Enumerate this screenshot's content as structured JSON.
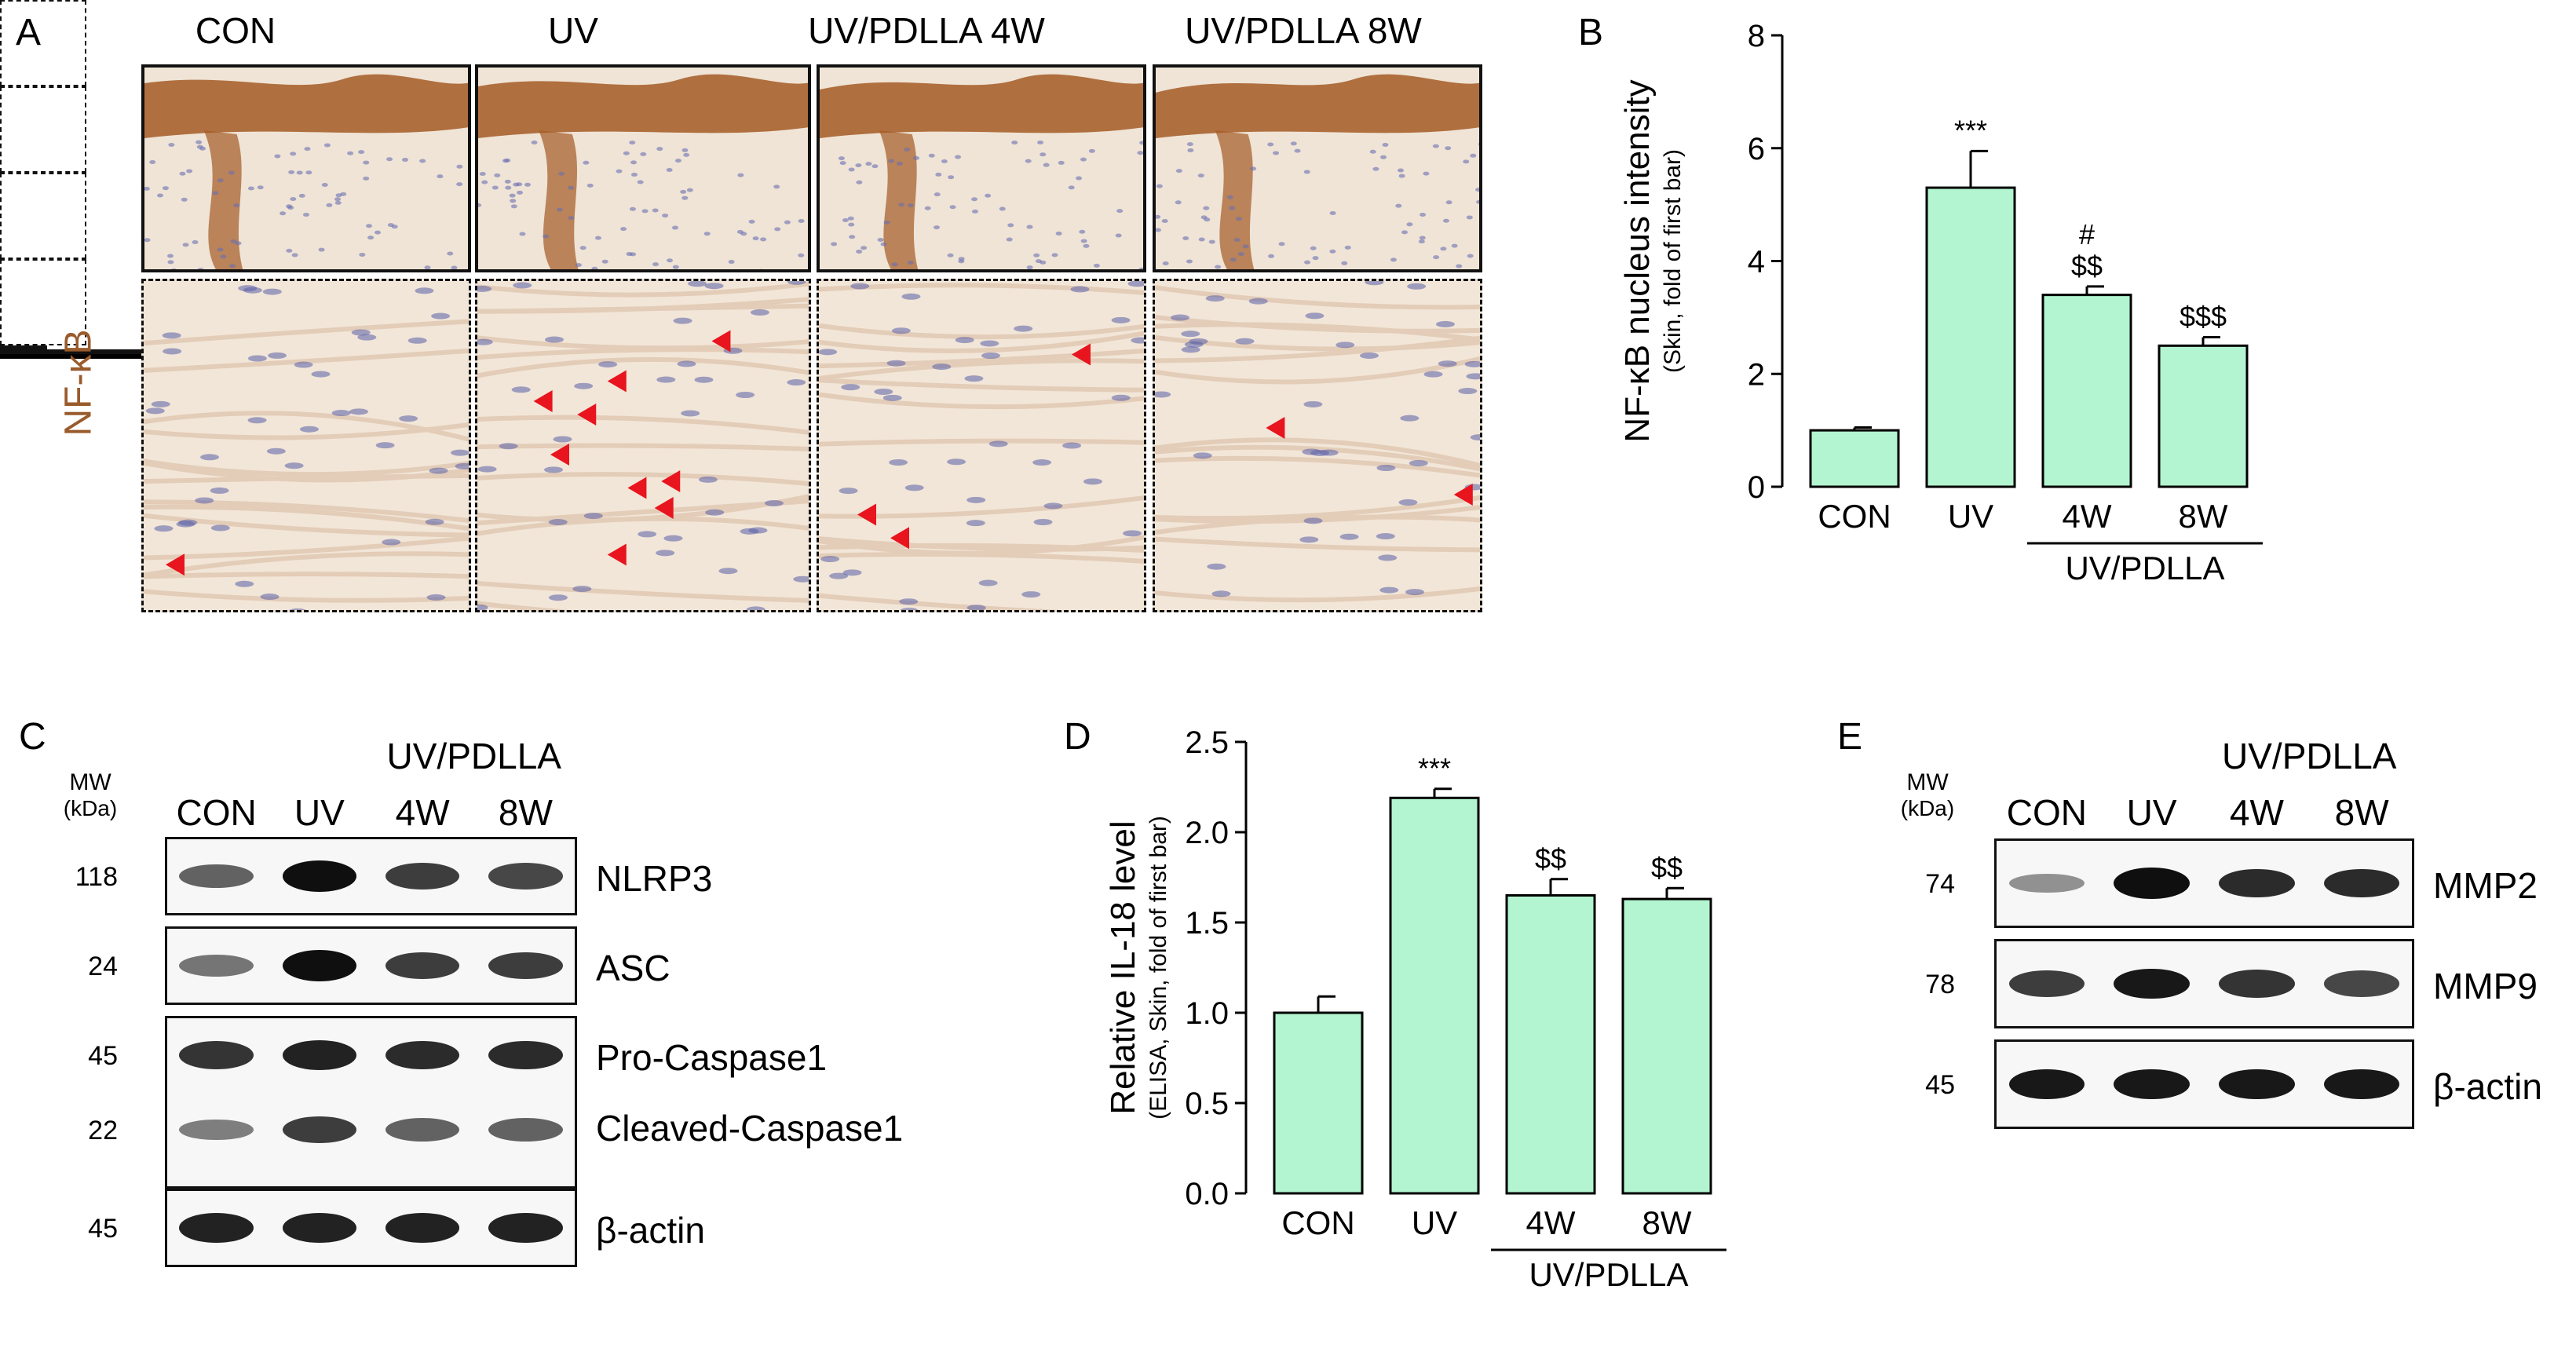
{
  "panels": {
    "A": "A",
    "B": "B",
    "C": "C",
    "D": "D",
    "E": "E"
  },
  "colors": {
    "bar_fill": "#b3f5d0",
    "stain": "#a45a24",
    "arrow": "#e8141e",
    "ihc_label": "#9a5b2c"
  },
  "panel_A": {
    "stain_label": "NF-κB",
    "columns": [
      "CON",
      "UV",
      "UV/PDLLA 4W",
      "UV/PDLLA 8W"
    ],
    "arrowhead_counts": [
      1,
      9,
      3,
      2
    ]
  },
  "panel_B": {
    "chart_data": {
      "type": "bar",
      "categories": [
        "CON",
        "UV",
        "4W",
        "8W"
      ],
      "values": [
        1.0,
        5.3,
        3.4,
        2.5
      ],
      "errors": [
        0.05,
        0.65,
        0.15,
        0.15
      ],
      "ylabel": "NF-κB nucleus intensity",
      "ylabel_sub": "(Skin, fold of first bar)",
      "ylim": [
        0,
        8
      ],
      "yticks": [
        0,
        2,
        4,
        6,
        8
      ],
      "group_label": "UV/PDLLA",
      "annotations": [
        {
          "bar": 1,
          "lines": [
            "***"
          ]
        },
        {
          "bar": 2,
          "lines": [
            "#",
            "$$"
          ]
        },
        {
          "bar": 3,
          "lines": [
            "$$$"
          ]
        }
      ]
    }
  },
  "panel_C": {
    "group_label": "UV/PDLLA",
    "lanes": [
      "CON",
      "UV",
      "4W",
      "8W"
    ],
    "mw_header": "MW",
    "mw_unit": "(kDa)",
    "rows": [
      {
        "mw": "118",
        "protein": "NLRP3",
        "intensity": [
          0.55,
          1.0,
          0.75,
          0.7
        ]
      },
      {
        "mw": "24",
        "protein": "ASC",
        "intensity": [
          0.45,
          1.0,
          0.75,
          0.75
        ]
      },
      {
        "mw": "45",
        "protein": "Pro-Caspase1",
        "intensity": [
          0.8,
          0.9,
          0.85,
          0.85
        ]
      },
      {
        "mw": "22",
        "protein": "Cleaved-Caspase1",
        "intensity": [
          0.4,
          0.75,
          0.55,
          0.55
        ]
      },
      {
        "mw": "45",
        "protein": "β-actin",
        "intensity": [
          0.9,
          0.9,
          0.9,
          0.9
        ]
      }
    ]
  },
  "panel_D": {
    "chart_data": {
      "type": "bar",
      "categories": [
        "CON",
        "UV",
        "4W",
        "8W"
      ],
      "values": [
        1.0,
        2.19,
        1.65,
        1.63
      ],
      "errors": [
        0.09,
        0.05,
        0.09,
        0.06
      ],
      "ylabel": "Relative IL-18 level",
      "ylabel_sub": "(ELISA, Skin, fold of first bar)",
      "ylim": [
        0,
        2.5
      ],
      "yticks": [
        0,
        0.5,
        1.0,
        1.5,
        2.0,
        2.5
      ],
      "group_label": "UV/PDLLA",
      "annotations": [
        {
          "bar": 1,
          "lines": [
            "***"
          ]
        },
        {
          "bar": 2,
          "lines": [
            "$$"
          ]
        },
        {
          "bar": 3,
          "lines": [
            "$$"
          ]
        }
      ]
    }
  },
  "panel_E": {
    "group_label": "UV/PDLLA",
    "lanes": [
      "CON",
      "UV",
      "4W",
      "8W"
    ],
    "mw_header": "MW",
    "mw_unit": "(kDa)",
    "rows": [
      {
        "mw": "74",
        "protein": "MMP2",
        "intensity": [
          0.3,
          1.0,
          0.85,
          0.85
        ]
      },
      {
        "mw": "78",
        "protein": "MMP9",
        "intensity": [
          0.75,
          0.95,
          0.8,
          0.7
        ]
      },
      {
        "mw": "45",
        "protein": "β-actin",
        "intensity": [
          0.95,
          0.95,
          0.95,
          0.95
        ]
      }
    ]
  }
}
